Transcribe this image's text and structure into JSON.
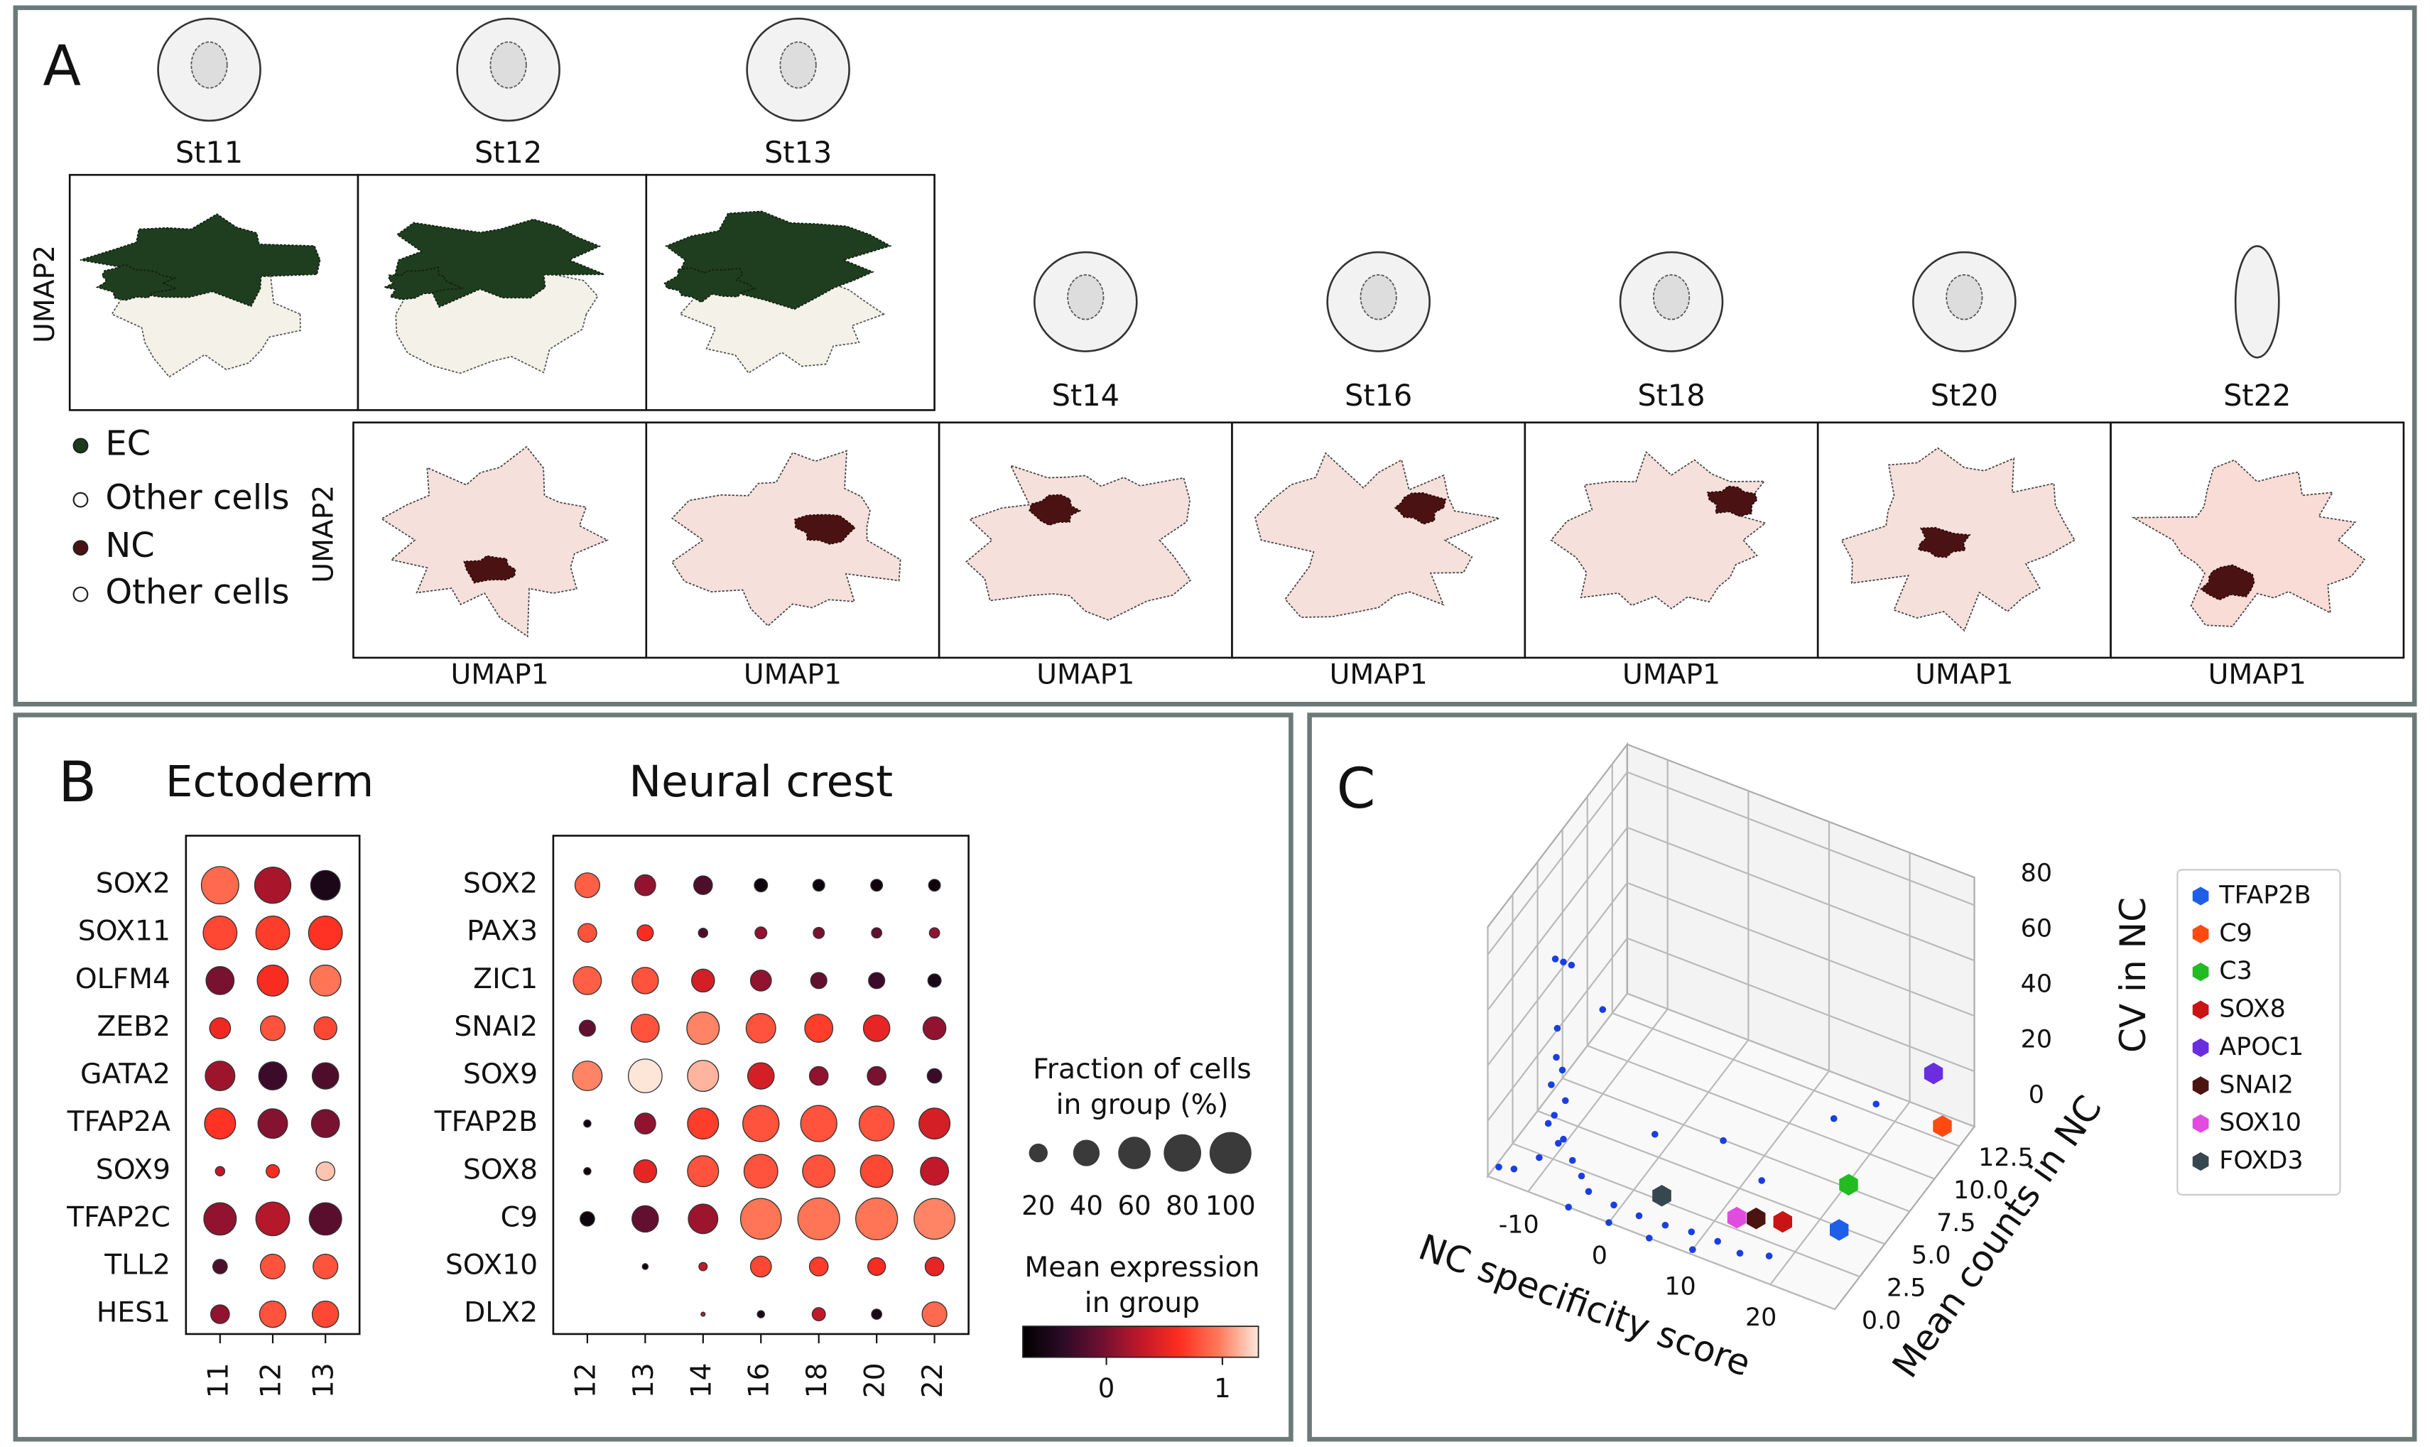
{
  "panel_labels": [
    "A",
    "B",
    "C"
  ],
  "panel_a": {
    "stages_top": [
      "St11",
      "St12",
      "St13"
    ],
    "stages_bottom": [
      "St14",
      "St16",
      "St18",
      "St20",
      "St22"
    ],
    "y_label": "UMAP2",
    "x_label": "UMAP1",
    "legend": [
      {
        "name": "EC",
        "color": "#1c3a1c"
      },
      {
        "name": "Other cells",
        "color": "#ffffff"
      },
      {
        "name": "NC",
        "color": "#4a1212"
      },
      {
        "name": "Other cells",
        "color": "#ffffff"
      }
    ]
  },
  "chart_data": [
    {
      "type": "dotplot",
      "title": "Ectoderm",
      "categories": [
        "11",
        "12",
        "13"
      ],
      "genes": [
        "SOX2",
        "SOX11",
        "OLFM4",
        "ZEB2",
        "GATA2",
        "TFAP2A",
        "SOX9",
        "TFAP2C",
        "TLL2",
        "HES1"
      ],
      "fraction": [
        [
          80,
          75,
          50
        ],
        [
          65,
          65,
          65
        ],
        [
          45,
          55,
          55
        ],
        [
          25,
          35,
          30
        ],
        [
          50,
          45,
          40
        ],
        [
          55,
          50,
          45
        ],
        [
          5,
          10,
          20
        ],
        [
          60,
          65,
          60
        ],
        [
          12,
          35,
          35
        ],
        [
          20,
          40,
          40
        ]
      ],
      "expression": [
        [
          0.9,
          0.2,
          -0.5
        ],
        [
          0.75,
          0.7,
          0.65
        ],
        [
          0.0,
          0.6,
          0.95
        ],
        [
          0.55,
          0.8,
          0.75
        ],
        [
          0.15,
          -0.3,
          -0.2
        ],
        [
          0.65,
          0.05,
          0.0
        ],
        [
          0.3,
          0.6,
          1.2
        ],
        [
          0.1,
          0.25,
          -0.15
        ],
        [
          -0.2,
          0.8,
          0.8
        ],
        [
          0.1,
          0.8,
          0.75
        ]
      ]
    },
    {
      "type": "dotplot",
      "title": "Neural crest",
      "categories": [
        "12",
        "13",
        "14",
        "16",
        "18",
        "20",
        "22"
      ],
      "genes": [
        "SOX2",
        "PAX3",
        "ZIC1",
        "SNAI2",
        "SOX9",
        "TFAP2B",
        "SOX8",
        "C9",
        "SOX10",
        "DLX2"
      ],
      "fraction": [
        [
          35,
          25,
          20,
          10,
          8,
          8,
          8
        ],
        [
          20,
          15,
          5,
          8,
          7,
          6,
          6
        ],
        [
          45,
          40,
          30,
          25,
          15,
          15,
          10
        ],
        [
          15,
          45,
          60,
          50,
          45,
          40,
          30
        ],
        [
          50,
          65,
          55,
          40,
          20,
          20,
          12
        ],
        [
          3,
          25,
          55,
          75,
          75,
          70,
          55
        ],
        [
          3,
          30,
          55,
          65,
          60,
          60,
          45
        ],
        [
          12,
          40,
          50,
          95,
          100,
          100,
          95
        ],
        [
          null,
          2,
          4,
          25,
          20,
          18,
          20
        ],
        [
          null,
          null,
          1,
          3,
          10,
          6,
          35
        ]
      ],
      "expression": [
        [
          0.85,
          0.1,
          -0.2,
          -0.6,
          -0.6,
          -0.6,
          -0.6
        ],
        [
          0.8,
          0.6,
          -0.2,
          0.1,
          0.0,
          -0.1,
          0.1
        ],
        [
          0.85,
          0.8,
          0.4,
          0.1,
          -0.1,
          -0.3,
          -0.5
        ],
        [
          -0.1,
          0.8,
          1.0,
          0.8,
          0.7,
          0.5,
          0.1
        ],
        [
          1.0,
          1.3,
          1.15,
          0.4,
          0.1,
          0.0,
          -0.3
        ],
        [
          -0.6,
          0.1,
          0.7,
          0.8,
          0.8,
          0.8,
          0.4
        ],
        [
          -0.6,
          0.5,
          0.8,
          0.8,
          0.8,
          0.75,
          0.3
        ],
        [
          -0.6,
          -0.1,
          0.15,
          0.95,
          0.95,
          0.95,
          1.0
        ],
        [
          null,
          -0.6,
          0.3,
          0.75,
          0.7,
          0.6,
          0.5
        ],
        [
          null,
          null,
          0.3,
          -0.5,
          0.3,
          -0.5,
          0.9
        ]
      ]
    },
    {
      "type": "scatter3d",
      "xlabel": "NC specificity score",
      "ylabel": "Mean counts in NC",
      "zlabel": "CV in NC",
      "xlim": [
        -15,
        28
      ],
      "ylim": [
        0,
        14
      ],
      "zlim": [
        0,
        90
      ],
      "xticks": [
        -10,
        0,
        10,
        20
      ],
      "yticks": [
        {
          "value": 0,
          "label": "0.0"
        },
        2.5,
        {
          "value": 5,
          "label": "5.0"
        },
        7.5,
        {
          "value": 10,
          "label": "10.0"
        },
        12.5
      ],
      "zticks": [
        0,
        20,
        40,
        60,
        80
      ],
      "grid": true,
      "legend": "right",
      "series": [
        {
          "color": "#1a3fe0",
          "x": [
            -7,
            -6,
            -5,
            -7,
            -7,
            -6.5,
            -7.5,
            -6,
            -7,
            -8,
            -6,
            -7,
            -5,
            -9,
            -4,
            -12,
            -14,
            -3,
            0,
            3,
            6,
            9,
            12,
            15,
            18,
            10,
            -5,
            0,
            5,
            2,
            8,
            14,
            18,
            22,
            -2
          ],
          "y": [
            0.3,
            0.3,
            0.3,
            0.5,
            0.4,
            0.6,
            0.3,
            0.5,
            0.2,
            0.4,
            0.3,
            0.6,
            0.4,
            0.3,
            0.5,
            0.2,
            0.3,
            0.4,
            0.5,
            0.6,
            0.8,
            1.0,
            1.2,
            1.0,
            1.5,
            0.3,
            0,
            0,
            0,
            3,
            5,
            4,
            8,
            9,
            1
          ],
          "z": [
            86,
            86,
            86,
            60,
            50,
            45,
            40,
            35,
            30,
            25,
            22,
            18,
            15,
            12,
            10,
            5,
            3,
            6,
            4,
            3,
            2,
            2,
            1,
            1,
            1,
            0,
            0,
            0,
            0,
            20,
            15,
            12,
            20,
            25,
            70
          ]
        },
        {
          "name": "TFAP2B",
          "color": "#1f5fe8",
          "x": [
            22.6
          ],
          "y": [
            4.8
          ],
          "z": [
            0
          ]
        },
        {
          "name": "C9",
          "color": "#ff4a10",
          "x": [
            24.9
          ],
          "y": [
            13.3
          ],
          "z": [
            0
          ]
        },
        {
          "name": "C3",
          "color": "#22bb22",
          "x": [
            20.2
          ],
          "y": [
            7.7
          ],
          "z": [
            0
          ]
        },
        {
          "name": "SOX8",
          "color": "#c81414",
          "x": [
            16.6
          ],
          "y": [
            4.0
          ],
          "z": [
            0
          ]
        },
        {
          "name": "APOC1",
          "color": "#6a2ee0",
          "x": [
            24.8
          ],
          "y": [
            12.5
          ],
          "z": [
            22.7
          ]
        },
        {
          "name": "SNAI2",
          "color": "#4a1410",
          "x": [
            13.8
          ],
          "y": [
            3.6
          ],
          "z": [
            0
          ]
        },
        {
          "name": "SOX10",
          "color": "#e04ce0",
          "x": [
            11.9
          ],
          "y": [
            3.2
          ],
          "z": [
            0
          ]
        },
        {
          "name": "FOXD3",
          "color": "#37474f",
          "x": [
            3.1
          ],
          "y": [
            2.8
          ],
          "z": [
            0
          ]
        }
      ]
    }
  ],
  "dotplot_legend": {
    "size_title": [
      "Fraction of cells",
      "in group (%)"
    ],
    "size_ticks": [
      20,
      40,
      60,
      80,
      100
    ],
    "color_title": [
      "Mean expression",
      "in group"
    ],
    "color_ticks": [
      0,
      1
    ],
    "clim": [
      -0.72,
      1.31
    ],
    "colormap": [
      "#000000",
      "#2b0a26",
      "#6e1032",
      "#c0182a",
      "#ff2e20",
      "#ff7a5a",
      "#fde8dc"
    ]
  }
}
